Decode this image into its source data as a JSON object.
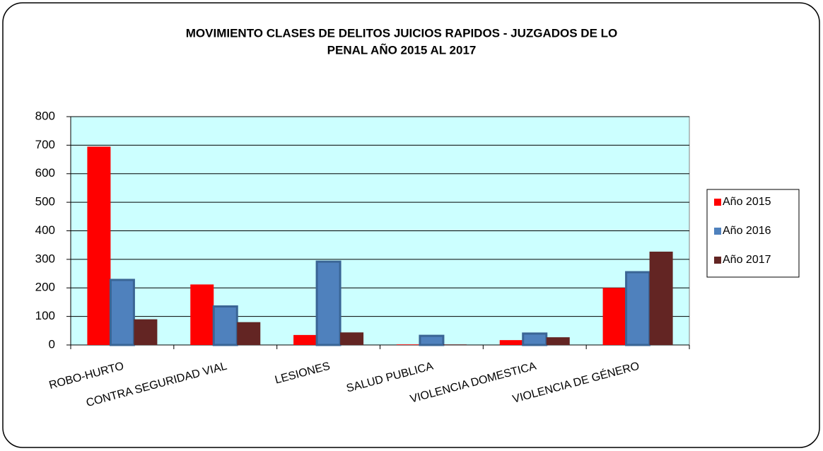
{
  "chart_data": {
    "type": "bar",
    "title": [
      "MOVIMIENTO CLASES DE DELITOS  JUICIOS RAPIDOS - JUZGADOS DE LO",
      "PENAL AÑO 2015 AL 2017"
    ],
    "categories": [
      "ROBO-HURTO",
      "CONTRA SEGURIDAD VIAL",
      "LESIONES",
      "SALUD PUBLICA",
      "VIOLENCIA DOMESTICA",
      "VIOLENCIA DE GÉNERO"
    ],
    "series": [
      {
        "name": "Año 2015",
        "color": "#ff0000",
        "values": [
          695,
          212,
          35,
          2,
          17,
          200
        ]
      },
      {
        "name": "Año 2016",
        "color": "#4f81bd",
        "values": [
          228,
          135,
          292,
          32,
          40,
          255
        ]
      },
      {
        "name": "Año 2017",
        "color": "#632523",
        "values": [
          90,
          80,
          44,
          2,
          27,
          327
        ]
      }
    ],
    "ylim": [
      0,
      800
    ],
    "yticks": [
      0,
      100,
      200,
      300,
      400,
      500,
      600,
      700,
      800
    ],
    "grid": true,
    "legend": "right",
    "background": "#ccffff"
  }
}
